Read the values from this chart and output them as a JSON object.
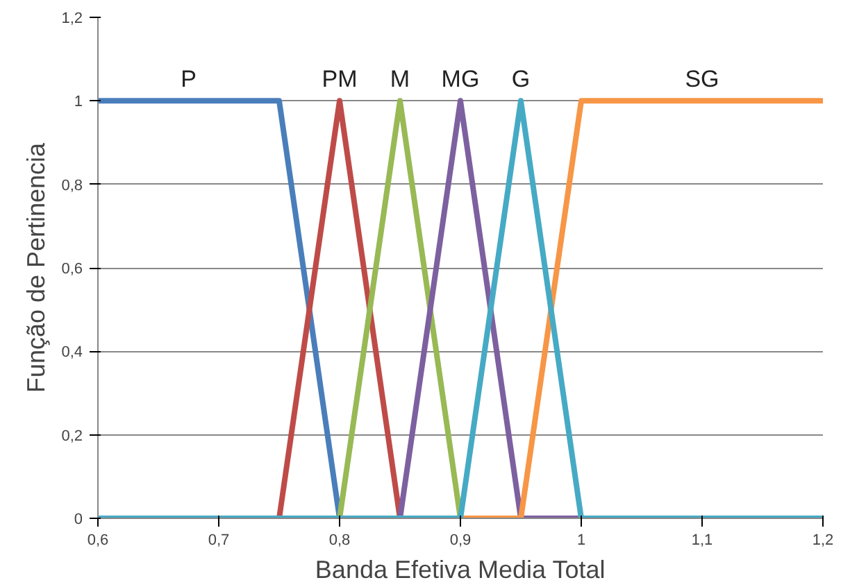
{
  "chart_data": {
    "type": "line",
    "xlabel": "Banda Efetiva Media Total",
    "ylabel": "Função de Pertinencia",
    "xlim": [
      0.6,
      1.2
    ],
    "ylim": [
      0,
      1.2
    ],
    "xticks": [
      {
        "value": 0.6,
        "label": "0,6"
      },
      {
        "value": 0.7,
        "label": "0,7"
      },
      {
        "value": 0.8,
        "label": "0,8"
      },
      {
        "value": 0.9,
        "label": "0,9"
      },
      1,
      {
        "value": 1.1,
        "label": "1,1"
      },
      {
        "value": 1.2,
        "label": "1,2"
      }
    ],
    "yticks": [
      0,
      {
        "value": 0.2,
        "label": "0,2"
      },
      {
        "value": 0.4,
        "label": "0,4"
      },
      {
        "value": 0.6,
        "label": "0,6"
      },
      {
        "value": 0.8,
        "label": "0,8"
      },
      1,
      {
        "value": 1.2,
        "label": "1,2"
      }
    ],
    "grid": "y",
    "marker": "none",
    "line_style": "solid",
    "series": [
      {
        "name": "P",
        "color": "#4a7ebb",
        "x": [
          0.6,
          0.75,
          0.8,
          1.2
        ],
        "values": [
          1,
          1,
          0,
          0
        ]
      },
      {
        "name": "PM",
        "color": "#be4b48",
        "x": [
          0.6,
          0.75,
          0.8,
          0.85,
          1.2
        ],
        "values": [
          0,
          0,
          1,
          0,
          0
        ]
      },
      {
        "name": "M",
        "color": "#98b954",
        "x": [
          0.6,
          0.8,
          0.85,
          0.9,
          1.2
        ],
        "values": [
          0,
          0,
          1,
          0,
          0
        ]
      },
      {
        "name": "MG",
        "color": "#7d60a0",
        "x": [
          0.6,
          0.85,
          0.9,
          0.95,
          1.2
        ],
        "values": [
          0,
          0,
          1,
          0,
          0
        ]
      },
      {
        "name": "SG",
        "color": "#f79646",
        "x": [
          0.6,
          0.95,
          1.0,
          1.2
        ],
        "values": [
          0,
          0,
          1,
          1
        ]
      },
      {
        "name": "G",
        "color": "#46aac5",
        "x": [
          0.6,
          0.9,
          0.95,
          1.0,
          1.2
        ],
        "values": [
          0,
          0,
          1,
          0,
          0
        ]
      }
    ]
  }
}
